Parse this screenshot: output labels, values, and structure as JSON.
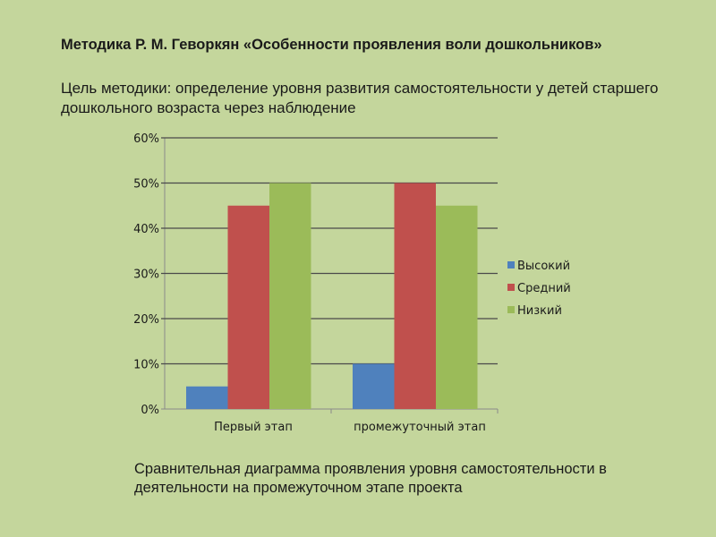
{
  "header": {
    "title": "Методика Р. М. Геворкян «Особенности проявления воли дошкольников»",
    "goal": "Цель методики: определение уровня развития самостоятельности у детей старшего дошкольного возраста через наблюдение"
  },
  "caption": "Сравнительная диаграмма  проявления  уровня самостоятельности  в деятельности на промежуточном этапе проекта",
  "chart_data": {
    "type": "bar",
    "categories": [
      "Первый этап",
      "промежуточный этап"
    ],
    "series": [
      {
        "name": "Высокий",
        "values": [
          5,
          10
        ],
        "color": "#4f81bd"
      },
      {
        "name": "Средний",
        "values": [
          45,
          50
        ],
        "color": "#c0504d"
      },
      {
        "name": "Низкий",
        "values": [
          50,
          45
        ],
        "color": "#9bbb59"
      }
    ],
    "yticks": [
      "0%",
      "10%",
      "20%",
      "30%",
      "40%",
      "50%",
      "60%"
    ],
    "ylim": [
      0,
      60
    ],
    "grid": true,
    "legend": "right",
    "title": "",
    "xlabel": "",
    "ylabel": ""
  }
}
